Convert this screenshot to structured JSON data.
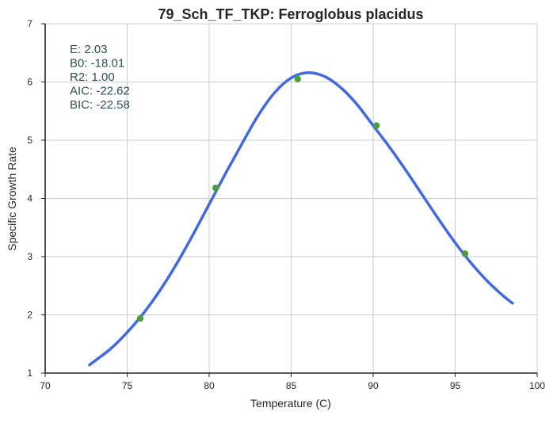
{
  "chart_data": {
    "type": "scatter",
    "title": "79_Sch_TF_TKP: Ferroglobus placidus",
    "xlabel": "Temperature (C)",
    "ylabel": "Specific Growth Rate",
    "xlim": [
      70,
      100
    ],
    "ylim": [
      1,
      7
    ],
    "xticks": [
      70,
      75,
      80,
      85,
      90,
      95,
      100
    ],
    "yticks": [
      1,
      2,
      3,
      4,
      5,
      6,
      7
    ],
    "grid": true,
    "annotations": [
      "E:  2.03",
      "B0:  -18.01",
      "R2:  1.00",
      "AIC: -22.62",
      "BIC: -22.58"
    ],
    "series": [
      {
        "kind": "scatter",
        "color": "#4a9e3f",
        "x": [
          75.8,
          80.4,
          85.4,
          90.2,
          95.6
        ],
        "y": [
          1.94,
          4.18,
          6.05,
          5.25,
          3.05
        ]
      },
      {
        "kind": "line",
        "color": "#4169e1",
        "x": [
          72.7,
          74,
          75,
          76,
          77,
          78,
          79,
          80,
          81,
          82,
          83,
          84,
          85,
          86,
          87,
          88,
          89,
          90,
          91,
          92,
          93,
          94,
          95,
          96,
          97,
          98,
          98.5
        ],
        "y": [
          1.14,
          1.42,
          1.7,
          2.03,
          2.42,
          2.87,
          3.37,
          3.9,
          4.43,
          4.94,
          5.43,
          5.82,
          6.07,
          6.16,
          6.1,
          5.91,
          5.62,
          5.25,
          4.88,
          4.48,
          4.06,
          3.64,
          3.24,
          2.88,
          2.57,
          2.31,
          2.2
        ]
      }
    ]
  }
}
